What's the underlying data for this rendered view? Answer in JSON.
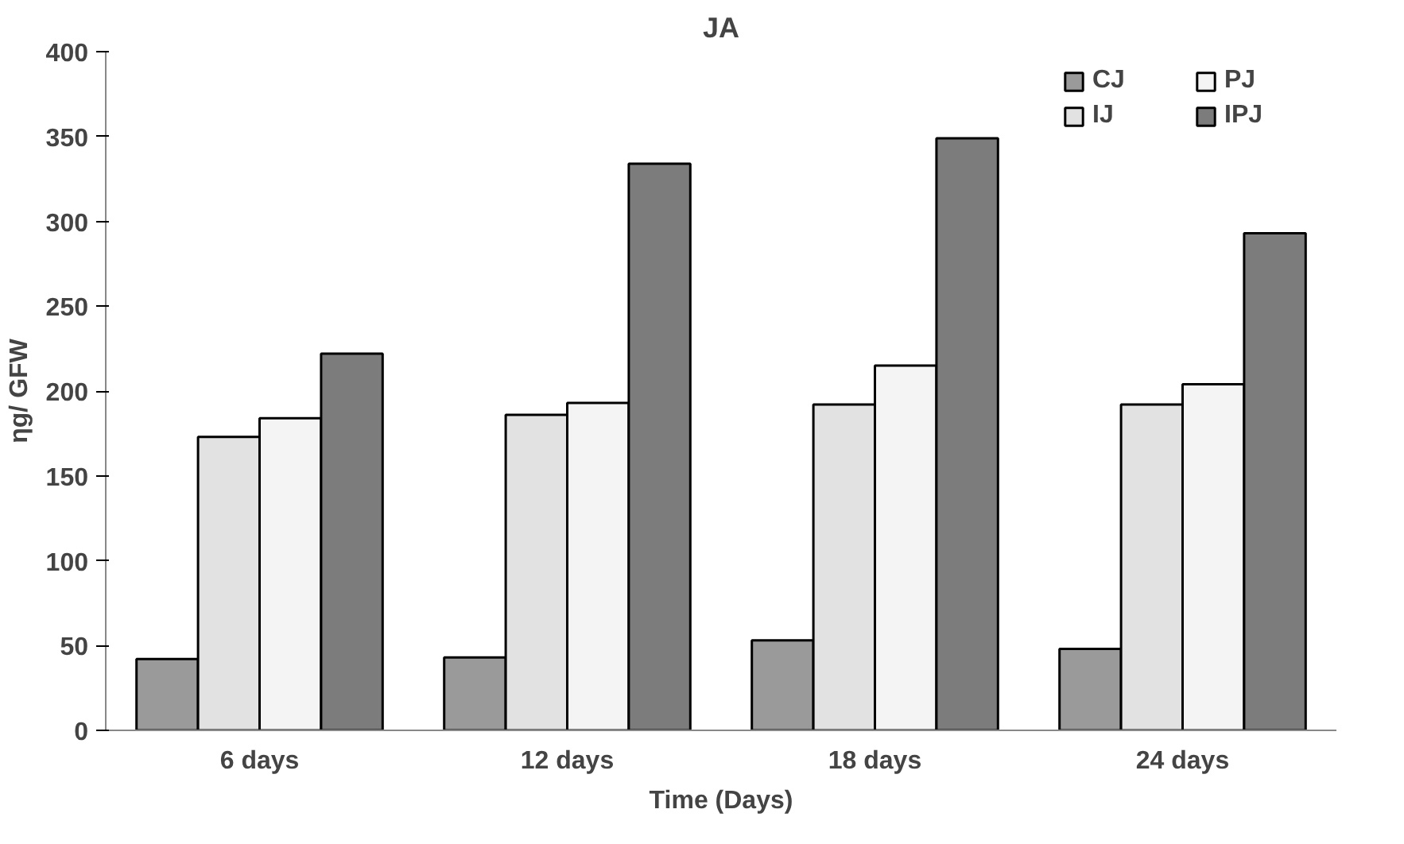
{
  "chart_data": {
    "type": "bar",
    "title": "JA",
    "xlabel": "Time (Days)",
    "ylabel": "ηg/ GFW",
    "categories": [
      "6 days",
      "12 days",
      "18 days",
      "24 days"
    ],
    "series": [
      {
        "name": "CJ",
        "color": "#9a9a9a",
        "values": [
          42,
          43,
          53,
          48
        ]
      },
      {
        "name": "IJ",
        "color": "#e2e2e2",
        "values": [
          173,
          186,
          192,
          192
        ]
      },
      {
        "name": "PJ",
        "color": "#f4f4f4",
        "values": [
          184,
          193,
          215,
          204
        ]
      },
      {
        "name": "IPJ",
        "color": "#7c7c7c",
        "values": [
          222,
          334,
          349,
          293
        ]
      }
    ],
    "ylim": [
      0,
      400
    ],
    "yticks": [
      0,
      50,
      100,
      150,
      200,
      250,
      300,
      350,
      400
    ],
    "grid": false,
    "legend": "top right"
  }
}
